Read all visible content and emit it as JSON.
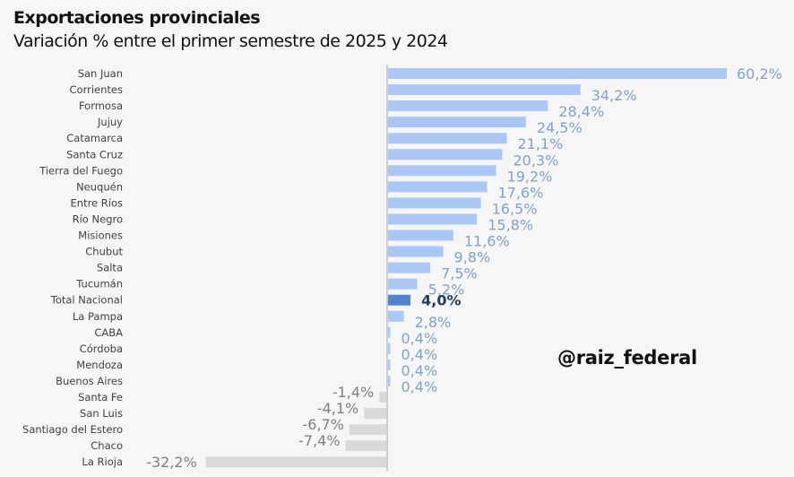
{
  "header": {
    "title": "Exportaciones provinciales",
    "subtitle": "Variación % entre el primer semestre de 2025 y 2024"
  },
  "watermark": "@raiz_federal",
  "colors": {
    "positive": "#a9c8f5",
    "positive_label": "#7ea3cc",
    "highlight": "#4f86cf",
    "highlight_label": "#1f3a5f",
    "negative": "#d9d9d9",
    "negative_label": "#7f7f7f",
    "axis": "#d0d0d0"
  },
  "chart_data": {
    "type": "bar",
    "orientation": "horizontal",
    "title": "Exportaciones provinciales",
    "subtitle": "Variación % entre el primer semestre de 2025 y 2024",
    "xlabel": "",
    "ylabel": "",
    "grid": false,
    "legend": "none",
    "xlim": [
      -32.2,
      60.2
    ],
    "categories": [
      "San Juan",
      "Corrientes",
      "Formosa",
      "Jujuy",
      "Catamarca",
      "Santa Cruz",
      "Tierra del Fuego",
      "Neuquén",
      "Entre Ríos",
      "Río Negro",
      "Misiones",
      "Chubut",
      "Salta",
      "Tucumán",
      "Total Nacional",
      "La Pampa",
      "CABA",
      "Córdoba",
      "Mendoza",
      "Buenos Aires",
      "Santa Fe",
      "San Luis",
      "Santiago del Estero",
      "Chaco",
      "La Rioja"
    ],
    "values": [
      60.2,
      34.2,
      28.4,
      24.5,
      21.1,
      20.3,
      19.2,
      17.6,
      16.5,
      15.8,
      11.6,
      9.8,
      7.5,
      5.2,
      4.0,
      2.8,
      0.4,
      0.4,
      0.4,
      0.4,
      -1.4,
      -4.1,
      -6.7,
      -7.4,
      -32.2
    ],
    "data_labels": [
      "60,2%",
      "34,2%",
      "28,4%",
      "24,5%",
      "21,1%",
      "20,3%",
      "19,2%",
      "17,6%",
      "16,5%",
      "15,8%",
      "11,6%",
      "9,8%",
      "7,5%",
      "5,2%",
      "4,0%",
      "2,8%",
      "0,4%",
      "0,4%",
      "0,4%",
      "0,4%",
      "-1,4%",
      "-4,1%",
      "-6,7%",
      "-7,4%",
      "-32,2%"
    ],
    "highlight": "Total Nacional"
  }
}
